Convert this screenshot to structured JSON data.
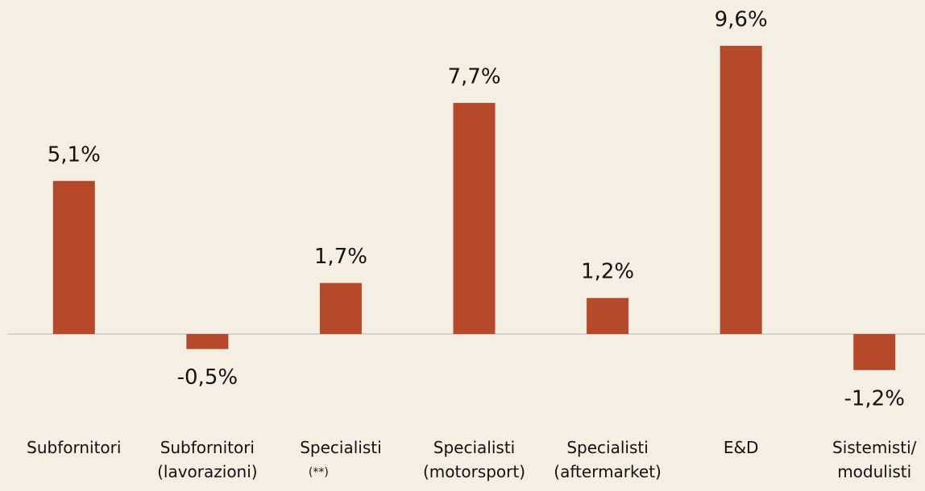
{
  "chart_data": {
    "type": "bar",
    "categories": [
      "Subfornitori",
      "Subfornitori\n(lavorazioni)",
      "Specialisti\n(**)",
      "Specialisti\n(motorsport)",
      "Specialisti\n(aftermarket)",
      "E&D",
      "Sistemisti/\nmodulisti"
    ],
    "values": [
      5.1,
      -0.5,
      1.7,
      7.7,
      1.2,
      9.6,
      -1.2
    ],
    "value_labels": [
      "5,1%",
      "-0,5%",
      "1,7%",
      "7,7%",
      "1,2%",
      "9,6%",
      "-1,2%"
    ],
    "color": "#b5492a"
  }
}
